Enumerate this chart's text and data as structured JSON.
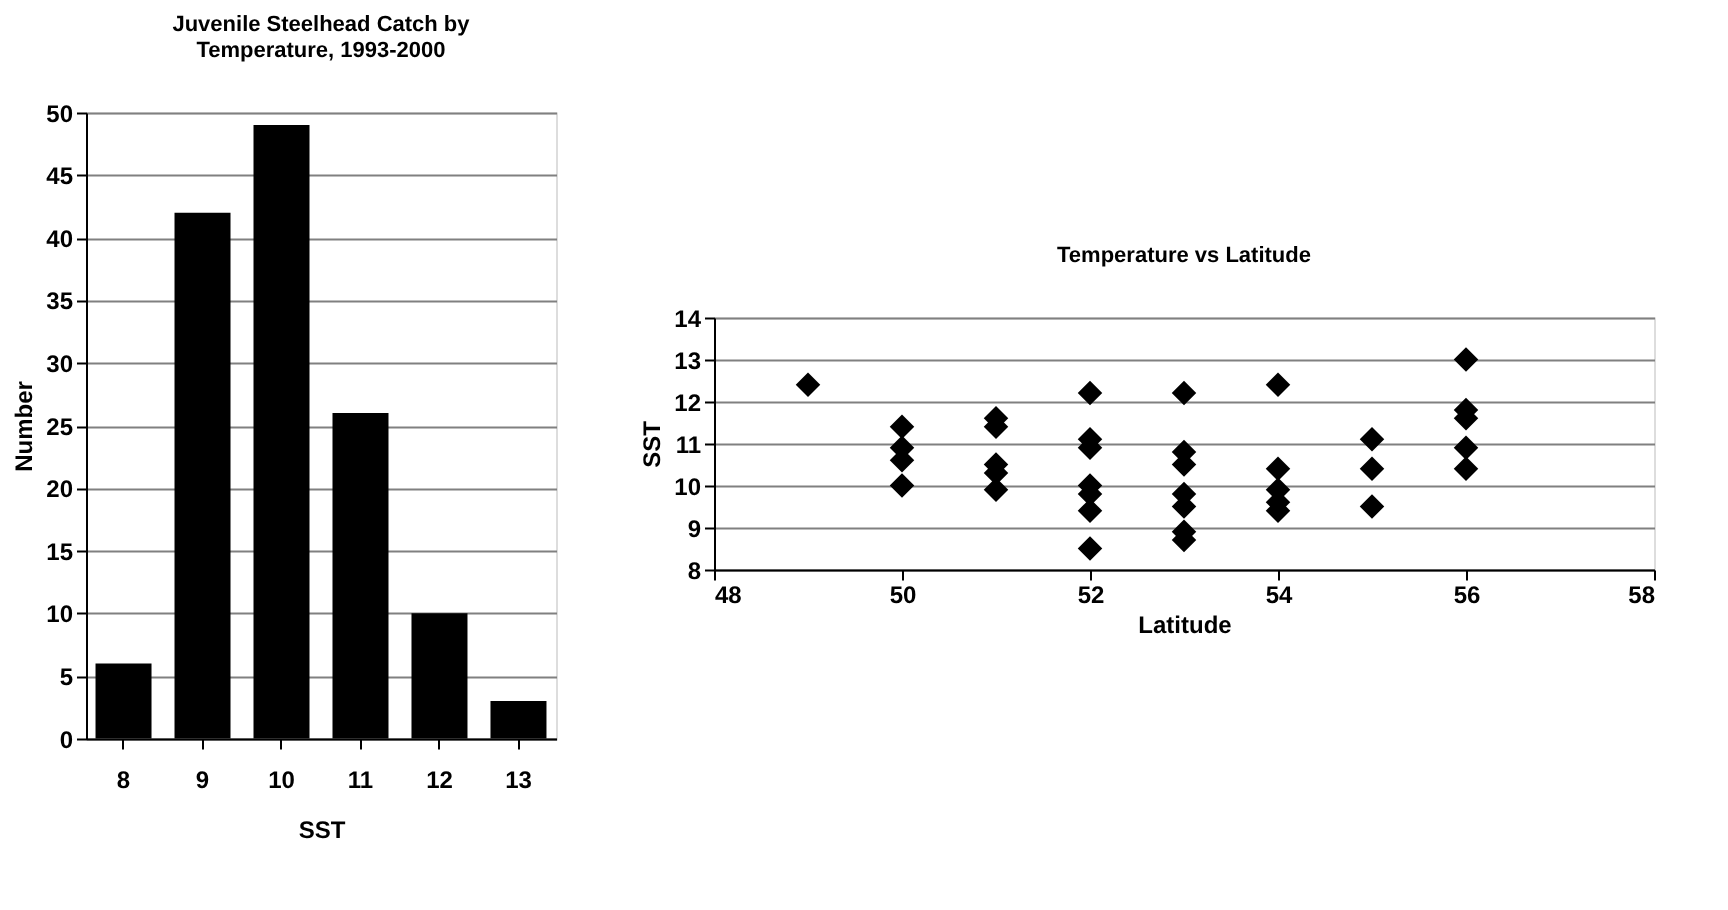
{
  "chart_data": [
    {
      "type": "bar",
      "title": [
        "Juvenile Steelhead Catch by",
        "Temperature, 1993-2000"
      ],
      "xlabel": "SST",
      "ylabel": "Number",
      "categories": [
        "8",
        "9",
        "10",
        "11",
        "12",
        "13"
      ],
      "values": [
        6,
        42,
        49,
        26,
        10,
        3
      ],
      "color": "#000000",
      "ylim": [
        0,
        50
      ],
      "yticks": [
        0,
        5,
        10,
        15,
        20,
        25,
        30,
        35,
        40,
        45,
        50
      ],
      "grid": "y"
    },
    {
      "type": "scatter",
      "title": "Temperature vs Latitude",
      "xlabel": "Latitude",
      "ylabel": "SST",
      "x": [
        49,
        50,
        50,
        50,
        50,
        51,
        51,
        51,
        51,
        51,
        52,
        52,
        52,
        52,
        52,
        52,
        52,
        53,
        53,
        53,
        53,
        53,
        53,
        53,
        54,
        54,
        54,
        54,
        54,
        55,
        55,
        55,
        56,
        56,
        56,
        56,
        56
      ],
      "values": [
        12.4,
        11.4,
        10.9,
        10.6,
        10.0,
        11.6,
        11.4,
        10.5,
        10.3,
        9.9,
        12.2,
        11.1,
        10.9,
        10.0,
        9.8,
        9.4,
        8.5,
        12.2,
        10.8,
        10.5,
        9.8,
        9.5,
        8.9,
        8.7,
        12.4,
        10.4,
        9.9,
        9.6,
        9.4,
        11.1,
        10.4,
        9.5,
        13.0,
        11.8,
        11.6,
        10.9,
        10.4
      ],
      "color": "#000000",
      "marker": "diamond",
      "xlim": [
        48,
        58
      ],
      "xticks": [
        48,
        50,
        52,
        54,
        56,
        58
      ],
      "ylim": [
        8,
        14
      ],
      "yticks": [
        8,
        9,
        10,
        11,
        12,
        13,
        14
      ],
      "grid": "y"
    }
  ]
}
